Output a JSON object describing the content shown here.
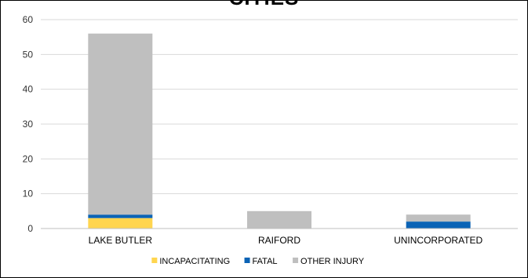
{
  "chart_data": {
    "type": "bar",
    "stacked": true,
    "title": "CITIES",
    "categories": [
      "LAKE BUTLER",
      "RAIFORD",
      "UNINCORPORATED"
    ],
    "series": [
      {
        "name": "INCAPACITATING",
        "color": "#FFD54F",
        "values": [
          3,
          0,
          0
        ]
      },
      {
        "name": "FATAL",
        "color": "#0B63B5",
        "values": [
          1,
          0,
          2
        ]
      },
      {
        "name": "OTHER INJURY",
        "color": "#BFBFBF",
        "values": [
          52,
          5,
          2
        ]
      }
    ],
    "ylim": [
      0,
      60
    ],
    "yticks": [
      0,
      10,
      20,
      30,
      40,
      50,
      60
    ],
    "grid": true,
    "legend_position": "bottom"
  }
}
